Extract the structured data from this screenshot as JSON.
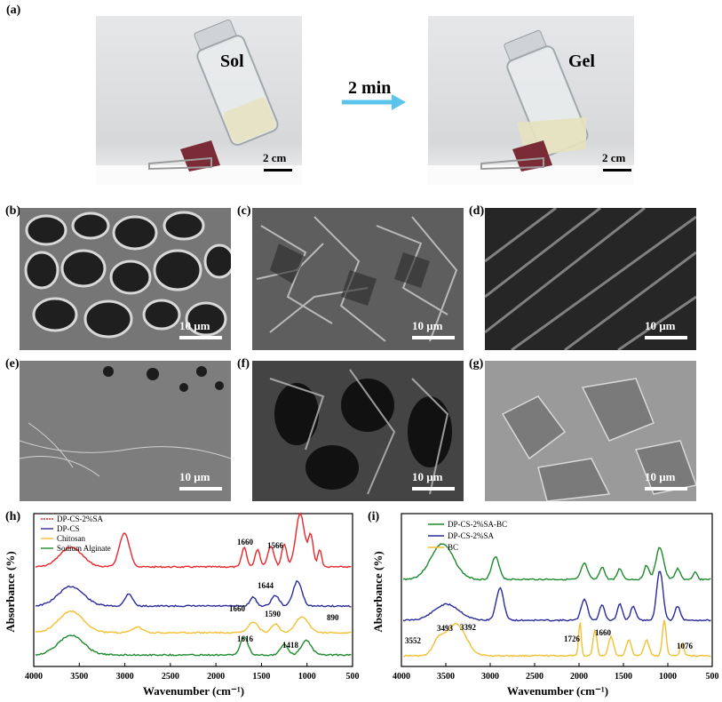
{
  "panel_labels": {
    "a": "(a)",
    "b": "(b)",
    "c": "(c)",
    "d": "(d)",
    "e": "(e)",
    "f": "(f)",
    "g": "(g)",
    "h": "(h)",
    "i": "(i)"
  },
  "photos": {
    "left_label": "Sol",
    "right_label": "Gel",
    "arrow_label": "2 min",
    "scale": "2 cm"
  },
  "sem_scale": "10 μm",
  "colors": {
    "red": "#e8262b",
    "blue": "#2b2b9a",
    "yellow": "#f2c032",
    "green": "#1d8a2e",
    "arrow": "#5bc4ec"
  },
  "chart_data": [
    {
      "type": "line",
      "panel": "(h)",
      "xlabel": "Wavenumber (cm⁻¹)",
      "ylabel": "Absorbance (%)",
      "xlim": [
        4000,
        500
      ],
      "x_ticks": [
        "4000",
        "3500",
        "3000",
        "2500",
        "2000",
        "1500",
        "1000",
        "500"
      ],
      "legend_position": "top-left",
      "series": [
        {
          "name": "DP-CS-2%SA",
          "color": "#e8262b"
        },
        {
          "name": "DP-CS",
          "color": "#2b2b9a"
        },
        {
          "name": "Chitosan",
          "color": "#f2c032"
        },
        {
          "name": "Sodium Alginate",
          "color": "#1d8a2e"
        }
      ],
      "annotations": [
        "1660",
        "1566",
        "1644",
        "1660",
        "1590",
        "890",
        "1616",
        "1418"
      ]
    },
    {
      "type": "line",
      "panel": "(i)",
      "xlabel": "Wavenumber (cm⁻¹)",
      "ylabel": "Absorbance (%)",
      "xlim": [
        4000,
        500
      ],
      "x_ticks": [
        "4000",
        "3500",
        "3000",
        "2500",
        "2000",
        "1500",
        "1000",
        "500"
      ],
      "legend_position": "top-left",
      "series": [
        {
          "name": "DP-CS-2%SA-BC",
          "color": "#1d8a2e"
        },
        {
          "name": "DP-CS-2%SA",
          "color": "#2b2b9a"
        },
        {
          "name": "BC",
          "color": "#f2c032"
        }
      ],
      "annotations": [
        "3552",
        "3493",
        "3392",
        "1726",
        "1660",
        "1076"
      ]
    }
  ]
}
